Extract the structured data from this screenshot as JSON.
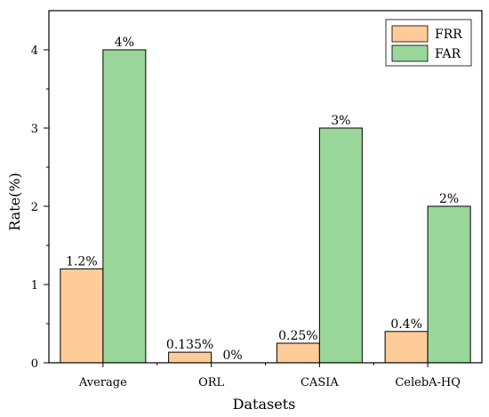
{
  "chart_data": {
    "type": "bar",
    "title": "",
    "xlabel": "Datasets",
    "ylabel": "Rate(%)",
    "ylim": [
      0,
      4.5
    ],
    "yticks": [
      "0",
      "1",
      "2",
      "3",
      "4"
    ],
    "categories": [
      "Average",
      "ORL",
      "CASIA",
      "CelebA-HQ"
    ],
    "series": [
      {
        "name": "FRR",
        "values": [
          1.2,
          0.135,
          0.25,
          0.4
        ],
        "labels": [
          "1.2%",
          "0.135%",
          "0.25%",
          "0.4%"
        ],
        "color": "#FFCC99"
      },
      {
        "name": "FAR",
        "values": [
          4,
          0,
          3,
          2
        ],
        "labels": [
          "4%",
          "0%",
          "3%",
          "2%"
        ],
        "color": "#99D699"
      }
    ],
    "legend": "top-right",
    "grid": false
  }
}
